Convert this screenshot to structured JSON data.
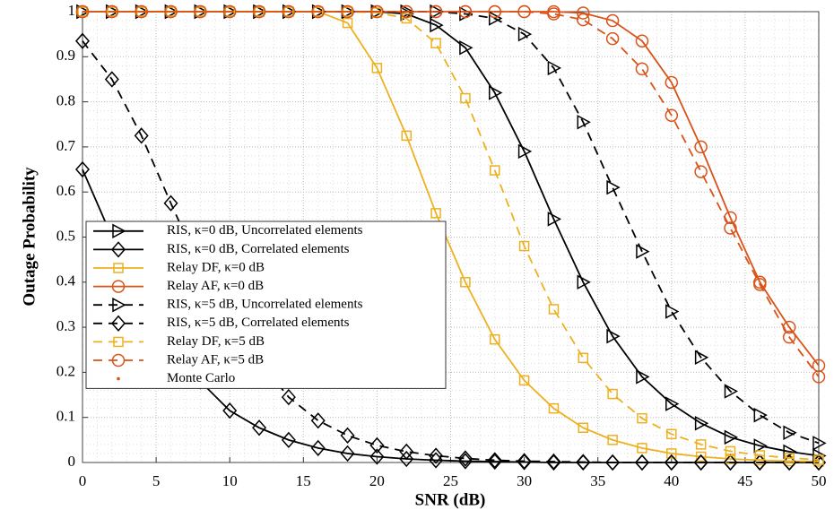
{
  "chart_data": {
    "type": "line",
    "xlabel": "SNR (dB)",
    "ylabel": "Outage Probability",
    "x": [
      0,
      2,
      4,
      6,
      8,
      10,
      12,
      14,
      16,
      18,
      20,
      22,
      24,
      26,
      28,
      30,
      32,
      34,
      36,
      38,
      40,
      42,
      44,
      46,
      48,
      50
    ],
    "xlim": [
      0,
      50
    ],
    "xticks": [
      0,
      5,
      10,
      15,
      20,
      25,
      30,
      35,
      40,
      45,
      50
    ],
    "ylim": [
      0,
      1
    ],
    "yticks": [
      0,
      0.1,
      0.2,
      0.3,
      0.4,
      0.5,
      0.6,
      0.7,
      0.8,
      0.9,
      1
    ],
    "grid": true,
    "legend": "lower left",
    "series": [
      {
        "name": "RIS, κ=0 dB, Uncorrelated elements",
        "color": "#000000",
        "dashed": false,
        "marker": "triangle-right",
        "values": [
          1,
          1,
          1,
          1,
          1,
          1,
          1,
          1,
          1,
          1,
          1,
          0.995,
          0.97,
          0.92,
          0.82,
          0.69,
          0.54,
          0.4,
          0.28,
          0.19,
          0.13,
          0.087,
          0.056,
          0.037,
          0.024,
          0.015
        ]
      },
      {
        "name": "RIS, κ=0 dB, Correlated elements",
        "color": "#000000",
        "dashed": false,
        "marker": "diamond",
        "values": [
          0.65,
          0.5,
          0.37,
          0.27,
          0.18,
          0.115,
          0.077,
          0.05,
          0.032,
          0.02,
          0.013,
          0.008,
          0.005,
          0.003,
          0.002,
          0.001,
          0,
          0,
          0,
          0,
          0,
          0,
          0,
          0,
          0,
          0
        ]
      },
      {
        "name": "Relay DF,  κ=0 dB",
        "color": "#EDB120",
        "dashed": false,
        "marker": "square",
        "values": [
          1,
          1,
          1,
          1,
          1,
          1,
          1,
          1,
          1,
          0.975,
          0.875,
          0.725,
          0.553,
          0.4,
          0.273,
          0.182,
          0.12,
          0.077,
          0.05,
          0.032,
          0.02,
          0.013,
          0.008,
          0.005,
          0.003,
          0.002
        ]
      },
      {
        "name": "Relay AF,  κ=0 dB",
        "color": "#D95319",
        "dashed": false,
        "marker": "circle",
        "values": [
          1,
          1,
          1,
          1,
          1,
          1,
          1,
          1,
          1,
          1,
          1,
          1,
          1,
          1,
          1,
          1,
          1,
          0.997,
          0.98,
          0.935,
          0.843,
          0.7,
          0.543,
          0.4,
          0.3,
          0.215
        ]
      },
      {
        "name": "RIS, κ=5 dB,  Uncorrelated elements",
        "color": "#000000",
        "dashed": true,
        "marker": "triangle-right",
        "values": [
          1,
          1,
          1,
          1,
          1,
          1,
          1,
          1,
          1,
          1,
          1,
          1,
          1,
          0.995,
          0.985,
          0.95,
          0.875,
          0.755,
          0.61,
          0.468,
          0.335,
          0.233,
          0.158,
          0.105,
          0.066,
          0.043
        ]
      },
      {
        "name": "RIS, κ=5 dB, Correlated elements",
        "color": "#000000",
        "dashed": true,
        "marker": "diamond",
        "values": [
          0.935,
          0.85,
          0.725,
          0.575,
          0.43,
          0.32,
          0.225,
          0.145,
          0.093,
          0.06,
          0.038,
          0.024,
          0.015,
          0.009,
          0.005,
          0.003,
          0.002,
          0.001,
          0,
          0,
          0,
          0,
          0,
          0,
          0,
          0
        ]
      },
      {
        "name": "Relay DF,  κ=5 dB",
        "color": "#EDB120",
        "dashed": true,
        "marker": "square",
        "values": [
          1,
          1,
          1,
          1,
          1,
          1,
          1,
          1,
          1,
          1,
          0.998,
          0.985,
          0.93,
          0.808,
          0.648,
          0.48,
          0.34,
          0.232,
          0.152,
          0.098,
          0.063,
          0.04,
          0.025,
          0.016,
          0.01,
          0.006
        ]
      },
      {
        "name": "Relay AF,  κ=5 dB",
        "color": "#D95319",
        "dashed": true,
        "marker": "circle",
        "values": [
          1,
          1,
          1,
          1,
          1,
          1,
          1,
          1,
          1,
          1,
          1,
          1,
          1,
          1,
          1,
          1,
          0.995,
          0.982,
          0.94,
          0.873,
          0.77,
          0.645,
          0.52,
          0.395,
          0.278,
          0.19
        ]
      }
    ],
    "legend_extra": [
      {
        "name": "Monte Carlo",
        "color": "#D95319",
        "marker": "dot"
      }
    ]
  }
}
